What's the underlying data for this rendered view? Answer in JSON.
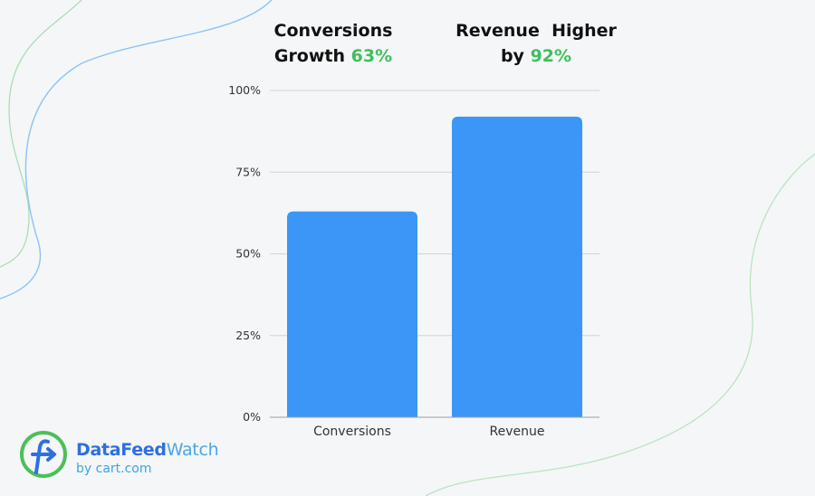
{
  "headlines": {
    "conversions": {
      "line1": "Conversions",
      "line2_text": "Growth",
      "line2_value": "63%"
    },
    "revenue": {
      "line1": "Revenue  Higher",
      "line2_text": "by",
      "line2_value": "92%"
    }
  },
  "colors": {
    "bar": "#3b96f7",
    "accent_green": "#3fbf5a",
    "grid": "#cfd3d8",
    "axis_text": "#333333",
    "background": "#f4f6f8"
  },
  "chart_data": {
    "type": "bar",
    "categories": [
      "Conversions",
      "Revenue"
    ],
    "values": [
      63,
      92
    ],
    "title": "",
    "xlabel": "",
    "ylabel": "",
    "ylim": [
      0,
      100
    ],
    "yticks": [
      "0%",
      "25%",
      "50%",
      "75%",
      "100%"
    ],
    "ytick_values": [
      0,
      25,
      50,
      75,
      100
    ],
    "grid": true
  },
  "logo": {
    "brand_first": "DataFeed",
    "brand_second": "Watch",
    "byline": "by cart.com",
    "icon": "datafeedwatch-f-icon"
  }
}
